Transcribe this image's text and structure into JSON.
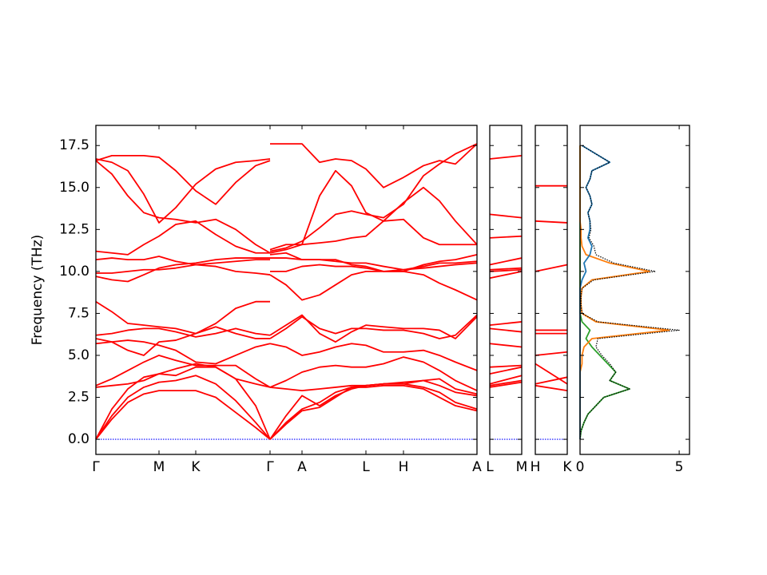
{
  "chart_data": [
    {
      "type": "line",
      "ylabel": "Frequency (THz)",
      "color": "#ff0000",
      "xlim": [
        0,
        4.77
      ],
      "ylim": [
        -0.9,
        18.7
      ],
      "xticks": [
        {
          "value": 0,
          "label": "Γ"
        },
        {
          "value": 0.79,
          "label": "M"
        },
        {
          "value": 1.25,
          "label": "K"
        },
        {
          "value": 2.18,
          "label": "Γ"
        },
        {
          "value": 2.58,
          "label": "A"
        },
        {
          "value": 3.38,
          "label": "L"
        },
        {
          "value": 3.85,
          "label": "H"
        },
        {
          "value": 4.77,
          "label": "A"
        }
      ],
      "yticks": [
        {
          "value": 0,
          "label": "0.0"
        },
        2.5,
        {
          "value": 5,
          "label": "5.0"
        },
        7.5,
        {
          "value": 10,
          "label": "10.0"
        },
        12.5,
        {
          "value": 15,
          "label": "15.0"
        },
        17.5
      ],
      "x": [
        0,
        0.2,
        0.4,
        0.6,
        0.79,
        1.0,
        1.25,
        1.5,
        1.75,
        2.0,
        2.18,
        2.18,
        2.18,
        2.38,
        2.58,
        2.8,
        3.0,
        3.2,
        3.38,
        3.6,
        3.85,
        4.1,
        4.3,
        4.5,
        4.77
      ],
      "series": [
        {
          "color": "#0000ff",
          "linestyle": "dotted",
          "values": [
            0,
            0,
            0,
            0,
            0,
            0,
            0,
            0,
            0,
            0,
            0,
            null,
            0,
            0,
            0,
            0,
            0,
            0,
            0,
            0,
            0,
            0,
            0,
            0,
            0
          ]
        },
        {
          "values": [
            0,
            1.2,
            2.2,
            2.7,
            2.9,
            2.9,
            2.9,
            2.5,
            1.6,
            0.7,
            0,
            null,
            0,
            0.9,
            1.7,
            1.9,
            2.5,
            3.1,
            3.1,
            3.2,
            3.2,
            3.0,
            2.5,
            2.0,
            1.7
          ]
        },
        {
          "values": [
            0,
            1.4,
            2.5,
            3.1,
            3.4,
            3.5,
            3.8,
            3.3,
            2.3,
            1.0,
            0,
            null,
            0,
            1.0,
            1.8,
            2.2,
            2.8,
            3.1,
            3.2,
            3.3,
            3.3,
            3.1,
            2.8,
            2.2,
            1.8
          ]
        },
        {
          "values": [
            0,
            1.8,
            3.0,
            3.7,
            3.9,
            3.8,
            4.3,
            4.3,
            3.6,
            2.0,
            0,
            null,
            0,
            1.4,
            2.6,
            2.0,
            2.6,
            3.0,
            3.2,
            3.3,
            3.4,
            3.5,
            3.2,
            2.8,
            2.6
          ]
        },
        {
          "values": [
            3.1,
            3.2,
            3.3,
            3.5,
            3.9,
            4.2,
            4.5,
            4.3,
            3.6,
            3.3,
            3.1,
            null,
            3.1,
            3.0,
            2.9,
            3.0,
            3.1,
            3.2,
            3.2,
            3.3,
            3.3,
            3.5,
            3.6,
            3.0,
            2.7
          ]
        },
        {
          "values": [
            3.2,
            3.6,
            4.1,
            4.6,
            5.0,
            4.7,
            4.4,
            4.4,
            4.4,
            3.6,
            3.1,
            null,
            3.1,
            3.5,
            4.0,
            4.3,
            4.4,
            4.3,
            4.3,
            4.5,
            4.9,
            4.6,
            4.1,
            3.5,
            2.9
          ]
        },
        {
          "values": [
            5.7,
            5.8,
            5.9,
            5.8,
            5.6,
            5.3,
            4.6,
            4.5,
            5.0,
            5.5,
            5.7,
            null,
            5.7,
            5.5,
            5.0,
            5.2,
            5.5,
            5.7,
            5.6,
            5.2,
            5.2,
            5.3,
            5.0,
            4.6,
            4.1
          ]
        },
        {
          "values": [
            6.0,
            5.8,
            5.3,
            5.0,
            5.8,
            5.9,
            6.3,
            6.7,
            6.3,
            6.0,
            6.0,
            null,
            6.0,
            6.6,
            7.3,
            6.6,
            6.3,
            6.6,
            6.6,
            6.5,
            6.5,
            6.3,
            6.0,
            6.2,
            7.4
          ]
        },
        {
          "values": [
            6.2,
            6.3,
            6.5,
            6.6,
            6.6,
            6.4,
            6.1,
            6.3,
            6.6,
            6.3,
            6.2,
            null,
            6.2,
            6.8,
            7.4,
            6.3,
            5.8,
            6.4,
            6.8,
            6.7,
            6.6,
            6.6,
            6.5,
            6.0,
            7.3
          ]
        },
        {
          "values": [
            8.2,
            7.6,
            6.9,
            6.8,
            6.7,
            6.6,
            6.3,
            6.9,
            7.8,
            8.2,
            8.2,
            null,
            9.8,
            9.2,
            8.3,
            8.6,
            9.2,
            9.8,
            10.0,
            10.0,
            10.0,
            9.8,
            9.3,
            8.9,
            8.3
          ]
        },
        {
          "values": [
            9.9,
            9.9,
            10.0,
            10.1,
            10.1,
            10.2,
            10.4,
            10.3,
            10.0,
            9.9,
            9.8,
            null,
            10.0,
            10.0,
            10.3,
            10.4,
            10.3,
            10.3,
            10.2,
            10.0,
            10.1,
            10.2,
            10.3,
            10.4,
            10.5
          ]
        },
        {
          "values": [
            9.7,
            9.5,
            9.4,
            9.8,
            10.2,
            10.4,
            10.5,
            10.7,
            10.8,
            10.8,
            10.8,
            null,
            10.8,
            10.8,
            10.7,
            10.7,
            10.6,
            10.5,
            10.5,
            10.3,
            10.1,
            10.3,
            10.5,
            10.5,
            10.6
          ]
        },
        {
          "values": [
            10.7,
            10.8,
            10.7,
            10.7,
            10.9,
            10.6,
            10.4,
            10.5,
            10.6,
            10.7,
            10.7,
            null,
            11.0,
            11.1,
            10.7,
            10.7,
            10.7,
            10.4,
            10.3,
            10.0,
            10.0,
            10.4,
            10.6,
            10.7,
            11.0
          ]
        },
        {
          "values": [
            11.2,
            11.1,
            11.0,
            11.6,
            12.1,
            12.8,
            13.0,
            12.2,
            11.5,
            11.1,
            11.1,
            null,
            11.1,
            11.3,
            11.6,
            11.7,
            11.8,
            12.0,
            12.1,
            13.0,
            14.1,
            15.0,
            14.2,
            13.0,
            11.6
          ]
        },
        {
          "values": [
            16.6,
            16.9,
            16.9,
            16.9,
            16.8,
            16.0,
            14.8,
            14.0,
            15.3,
            16.3,
            16.6,
            null,
            17.6,
            17.6,
            17.6,
            16.5,
            16.7,
            16.6,
            16.1,
            15.0,
            15.6,
            16.3,
            16.6,
            16.4,
            17.6
          ]
        },
        {
          "values": [
            16.6,
            15.8,
            14.5,
            13.5,
            13.2,
            13.1,
            12.9,
            13.1,
            12.5,
            11.6,
            11.1,
            null,
            11.3,
            11.6,
            11.6,
            14.5,
            16.0,
            15.1,
            13.5,
            13.0,
            13.1,
            12.0,
            11.6,
            11.6,
            11.6
          ]
        },
        {
          "values": [
            16.7,
            16.5,
            16.0,
            14.6,
            12.9,
            13.8,
            15.2,
            16.1,
            16.5,
            16.6,
            16.7,
            null,
            11.2,
            11.4,
            11.8,
            12.6,
            13.4,
            13.6,
            13.4,
            13.2,
            14.0,
            15.7,
            16.4,
            17.0,
            17.6
          ]
        }
      ]
    },
    {
      "type": "line",
      "sharey": true,
      "color": "#ff0000",
      "xlim": [
        0,
        1
      ],
      "xticks": [
        {
          "value": 0,
          "label": "L"
        },
        {
          "value": 1,
          "label": "M"
        }
      ],
      "x": [
        0,
        1
      ],
      "series": [
        {
          "color": "#0000ff",
          "linestyle": "dotted",
          "values": [
            0,
            0
          ]
        },
        {
          "values": [
            3.1,
            3.4
          ]
        },
        {
          "values": [
            3.2,
            3.5
          ]
        },
        {
          "values": [
            3.3,
            3.8
          ]
        },
        {
          "values": [
            3.9,
            4.3
          ]
        },
        {
          "values": [
            4.3,
            4.4
          ]
        },
        {
          "values": [
            5.7,
            5.5
          ]
        },
        {
          "values": [
            6.6,
            6.4
          ]
        },
        {
          "values": [
            6.8,
            7.0
          ]
        },
        {
          "values": [
            9.6,
            10.0
          ]
        },
        {
          "values": [
            10.0,
            10.1
          ]
        },
        {
          "values": [
            10.1,
            10.2
          ]
        },
        {
          "values": [
            10.4,
            10.8
          ]
        },
        {
          "values": [
            12.0,
            12.1
          ]
        },
        {
          "values": [
            13.4,
            13.2
          ]
        },
        {
          "values": [
            16.7,
            16.9
          ]
        }
      ]
    },
    {
      "type": "line",
      "sharey": true,
      "color": "#ff0000",
      "xlim": [
        0,
        1
      ],
      "xticks": [
        {
          "value": 0,
          "label": "H"
        },
        {
          "value": 1,
          "label": "K"
        }
      ],
      "x": [
        0,
        1
      ],
      "series": [
        {
          "color": "#0000ff",
          "linestyle": "dotted",
          "values": [
            0,
            0
          ]
        },
        {
          "values": [
            3.3,
            3.7
          ]
        },
        {
          "values": [
            3.2,
            2.9
          ]
        },
        {
          "values": [
            4.5,
            3.3
          ]
        },
        {
          "values": [
            5.0,
            5.2
          ]
        },
        {
          "values": [
            6.3,
            6.3
          ]
        },
        {
          "values": [
            6.5,
            6.5
          ]
        },
        {
          "values": [
            10.0,
            10.4
          ]
        },
        {
          "values": [
            13.0,
            12.9
          ]
        },
        {
          "values": [
            15.1,
            15.1
          ]
        }
      ]
    },
    {
      "type": "line",
      "orientation": "horizontal",
      "sharey": true,
      "xlim": [
        0,
        5.52
      ],
      "xticks": [
        0,
        5
      ],
      "y": [
        0,
        0.5,
        1,
        1.5,
        2,
        2.5,
        3,
        3.5,
        4,
        4.5,
        5,
        5.5,
        6,
        6.5,
        7,
        7.5,
        8,
        8.5,
        9,
        9.5,
        10,
        10.5,
        11,
        11.5,
        12,
        12.5,
        13,
        13.5,
        14,
        14.5,
        15,
        15.5,
        16,
        16.5,
        17,
        17.5
      ],
      "series": [
        {
          "color": "#2ca02c",
          "values": [
            0,
            0.05,
            0.2,
            0.4,
            0.8,
            1.2,
            2.5,
            1.5,
            1.8,
            1.4,
            1.0,
            0.6,
            0.3,
            0.5,
            0.1,
            0,
            0,
            0,
            0,
            0,
            0,
            0,
            0,
            0,
            0,
            0,
            0,
            0,
            0,
            0,
            0,
            0,
            0,
            0,
            0,
            0
          ]
        },
        {
          "color": "#ff7f0e",
          "values": [
            0,
            0,
            0,
            0,
            0,
            0,
            0,
            0,
            0,
            0.1,
            0.1,
            0.2,
            0.6,
            4.5,
            0.8,
            0.1,
            0.05,
            0.05,
            0.1,
            0.6,
            3.5,
            1.5,
            0.3,
            0.1,
            0.05,
            0.05,
            0,
            0,
            0,
            0,
            0,
            0,
            0,
            0,
            0,
            0
          ]
        },
        {
          "color": "#1f77b4",
          "values": [
            0,
            0,
            0,
            0,
            0,
            0,
            0,
            0,
            0,
            0,
            0,
            0,
            0,
            0,
            0,
            0,
            0,
            0,
            0,
            0.1,
            0.3,
            0.2,
            0.5,
            0.6,
            0.4,
            0.5,
            0.5,
            0.4,
            0.6,
            0.5,
            0.3,
            0.5,
            0.6,
            1.5,
            0.8,
            0.1
          ]
        },
        {
          "color": "#000000",
          "linestyle": "dotted",
          "values": [
            0,
            0.05,
            0.2,
            0.4,
            0.8,
            1.2,
            2.5,
            1.5,
            1.8,
            1.5,
            1.1,
            0.8,
            0.9,
            5.0,
            0.9,
            0.1,
            0.05,
            0.05,
            0.1,
            0.7,
            3.8,
            1.7,
            0.8,
            0.7,
            0.45,
            0.55,
            0.5,
            0.4,
            0.6,
            0.5,
            0.3,
            0.5,
            0.6,
            1.5,
            0.8,
            0.1
          ]
        }
      ]
    }
  ]
}
